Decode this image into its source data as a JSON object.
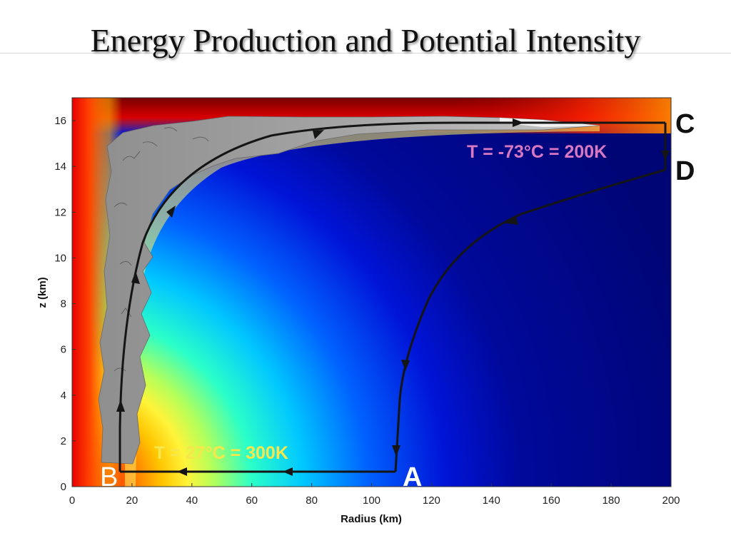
{
  "title": "Energy Production and Potential Intensity",
  "colors": {
    "hot_red": "#b00000",
    "cold_blue": "#000a7a",
    "cloud_gray": "#9c9c9c",
    "cycle_line": "#151515",
    "upper_temp_label": "#d978c2",
    "lower_temp_label": "#f6e84c",
    "point_label_white": "#ffffff",
    "point_label_black": "#111111"
  },
  "chart_data": {
    "type": "heatmap",
    "xlabel": "Radius (km)",
    "ylabel": "z (km)",
    "xlim": [
      0,
      200
    ],
    "ylim": [
      0,
      17
    ],
    "x_ticks": [
      0,
      20,
      40,
      60,
      80,
      100,
      120,
      140,
      160,
      180,
      200
    ],
    "y_ticks": [
      0,
      2,
      4,
      6,
      8,
      10,
      12,
      14,
      16
    ],
    "cycle_points": [
      {
        "label": "A",
        "x": 108,
        "z": 0.6
      },
      {
        "label": "B",
        "x": 16,
        "z": 0.6
      },
      {
        "label": "C",
        "x": 199,
        "z": 15.6
      },
      {
        "label": "D",
        "x": 199,
        "z": 13.6
      }
    ],
    "annotations": [
      {
        "id": "upper_temp",
        "text": "T = -73°C = 200K",
        "x": 150,
        "z": 14.7
      },
      {
        "id": "lower_temp",
        "text": "T = 27°C = 300K",
        "x": 62,
        "z": 1.5
      }
    ]
  }
}
